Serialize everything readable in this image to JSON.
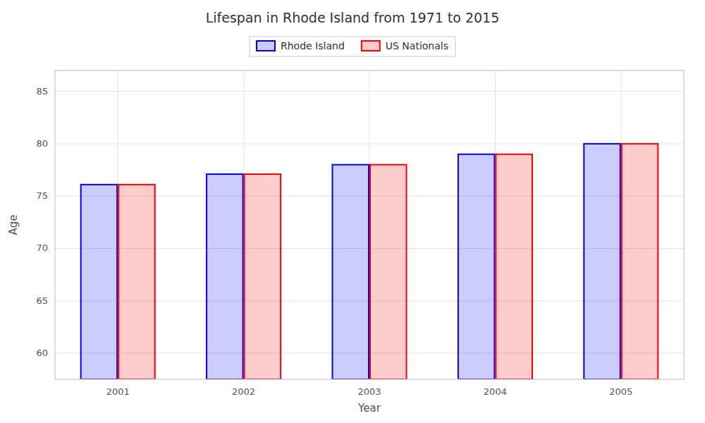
{
  "chart_data": {
    "type": "bar",
    "title": "Lifespan in Rhode Island from 1971 to 2015",
    "xlabel": "Year",
    "ylabel": "Age",
    "categories": [
      "2001",
      "2002",
      "2003",
      "2004",
      "2005"
    ],
    "series": [
      {
        "name": "Rhode Island",
        "color": "#0000ff",
        "values": [
          76.1,
          77.1,
          78.0,
          79.0,
          80.0
        ]
      },
      {
        "name": "US Nationals",
        "color": "#ff0000",
        "values": [
          76.1,
          77.1,
          78.0,
          79.0,
          80.0
        ]
      }
    ],
    "ylim": [
      57.5,
      87
    ],
    "yticks": [
      60,
      65,
      70,
      75,
      80,
      85
    ],
    "grid": true,
    "legend": "top"
  }
}
